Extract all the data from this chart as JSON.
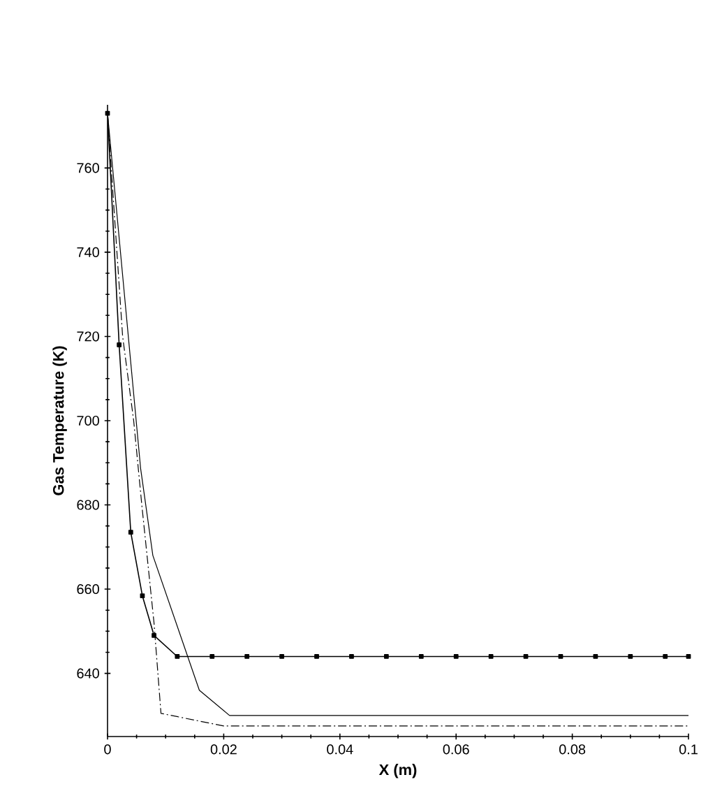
{
  "chart_data": {
    "type": "line",
    "xlabel": "X (m)",
    "ylabel": "Gas Temperature (K)",
    "xlim": [
      0,
      0.1
    ],
    "ylim": [
      625,
      775
    ],
    "xticks": [
      0,
      0.02,
      0.04,
      0.06,
      0.08,
      0.1
    ],
    "yticks": [
      640,
      660,
      680,
      700,
      720,
      740,
      760
    ],
    "grid": false,
    "series": [
      {
        "color": "#000000",
        "marker": "square",
        "line_style": "solid",
        "x": [
          0,
          0.002,
          0.004,
          0.006,
          0.008,
          0.012,
          0.018,
          0.024,
          0.03,
          0.036,
          0.042,
          0.048,
          0.054,
          0.06,
          0.066,
          0.072,
          0.078,
          0.084,
          0.09,
          0.096,
          0.1
        ],
        "values": [
          773,
          718,
          673.5,
          658.4,
          649,
          644,
          644,
          644,
          644,
          644,
          644,
          644,
          644,
          644,
          644,
          644,
          644,
          644,
          644,
          644,
          644
        ]
      },
      {
        "color": "#000000",
        "marker": "none",
        "line_style": "dashdot",
        "x": [
          0,
          0.0026,
          0.0045,
          0.0059,
          0.008,
          0.0092,
          0.02,
          0.1
        ],
        "values": [
          773,
          720,
          700,
          680,
          652,
          630.5,
          627.5,
          627.5
        ]
      },
      {
        "color": "#000000",
        "marker": "none",
        "line_style": "solid",
        "x": [
          0,
          0.0057,
          0.0078,
          0.0158,
          0.021,
          0.1
        ],
        "values": [
          773,
          688.6,
          668,
          636,
          630,
          630
        ]
      }
    ]
  }
}
